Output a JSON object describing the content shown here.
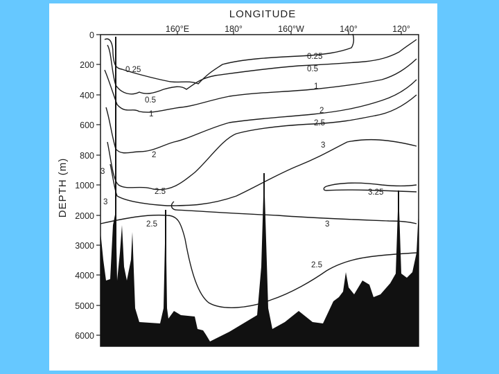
{
  "figure": {
    "x_axis_title": "LONGITUDE",
    "y_axis_title": "DEPTH (m)",
    "x_ticks": [
      "160°E",
      "180°",
      "160°W",
      "140°",
      "120°"
    ],
    "y_ticks": [
      "0",
      "200",
      "400",
      "600",
      "800",
      "1000",
      "2000",
      "3000",
      "4000",
      "5000",
      "6000"
    ],
    "isoline_labels": [
      "0.25",
      "0.5",
      "1",
      "2",
      "2.5",
      "3",
      "3.25"
    ],
    "colors": {
      "background": "#66c8ff",
      "panel": "#ffffff",
      "ink": "#1a1a1a"
    }
  }
}
